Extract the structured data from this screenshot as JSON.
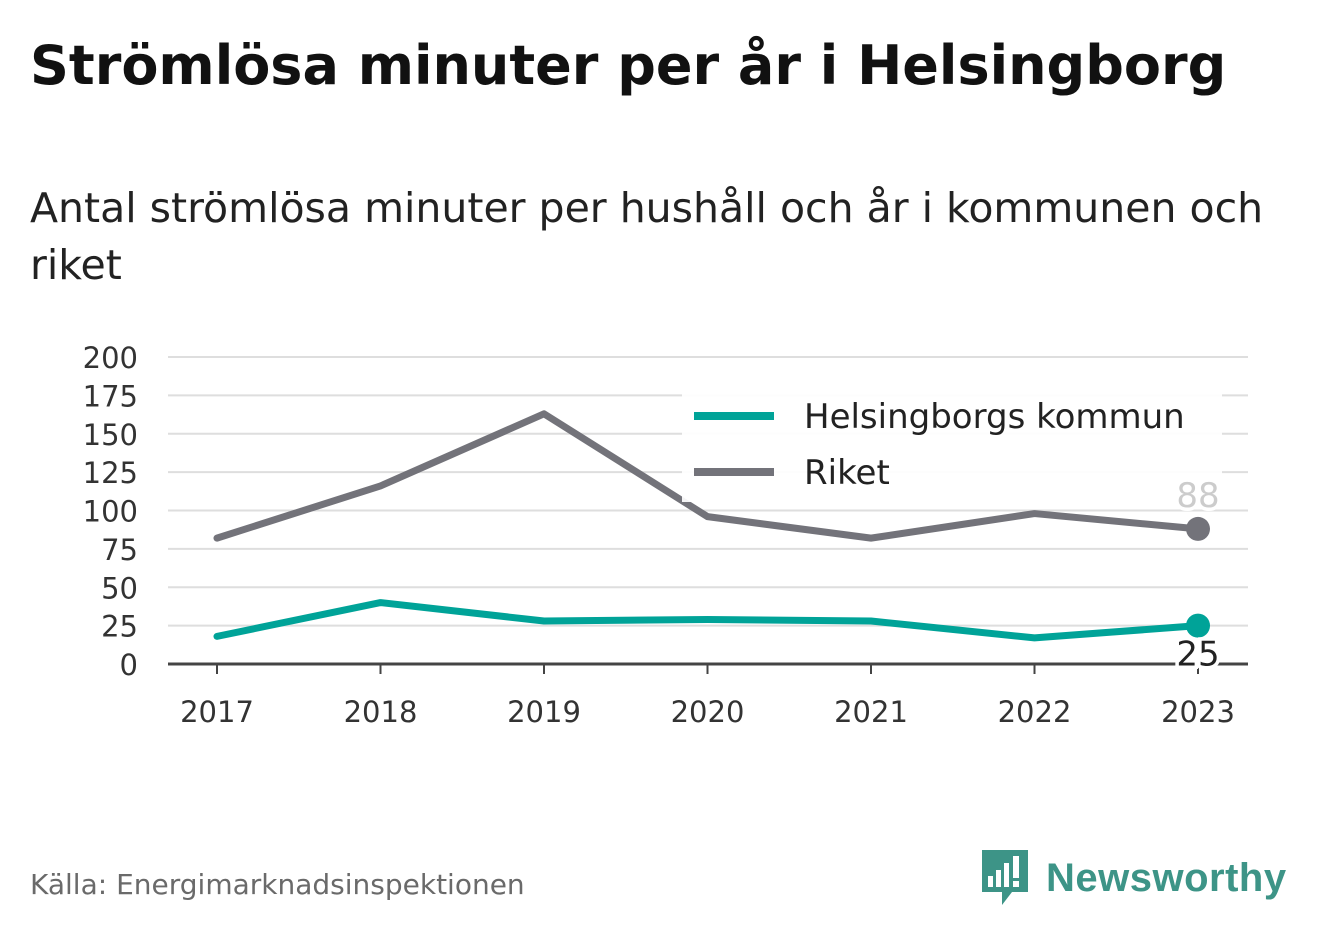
{
  "title": "Strömlösa minuter per år i Helsingborg",
  "subtitle": "Antal strömlösa minuter per hushåll och år i kommunen och riket",
  "source": "Källa: Energimarknadsinspektionen",
  "brand": {
    "name": "Newsworthy",
    "icon": "newsworthy-chart-icon",
    "color": "#3d9487"
  },
  "chart_data": {
    "type": "line",
    "x": [
      "2017",
      "2018",
      "2019",
      "2020",
      "2021",
      "2022",
      "2023"
    ],
    "y_ticks": [
      "0",
      "25",
      "50",
      "75",
      "100",
      "125",
      "150",
      "175",
      "200"
    ],
    "ylim": [
      0,
      200
    ],
    "grid": true,
    "legend_position": "top-right",
    "series": [
      {
        "name": "Helsingborgs kommun",
        "color": "#00a398",
        "values": [
          18,
          40,
          28,
          29,
          28,
          17,
          25
        ],
        "end_label": "25"
      },
      {
        "name": "Riket",
        "color": "#73737a",
        "values": [
          82,
          116,
          163,
          96,
          82,
          98,
          88
        ],
        "end_label": "88"
      }
    ]
  }
}
